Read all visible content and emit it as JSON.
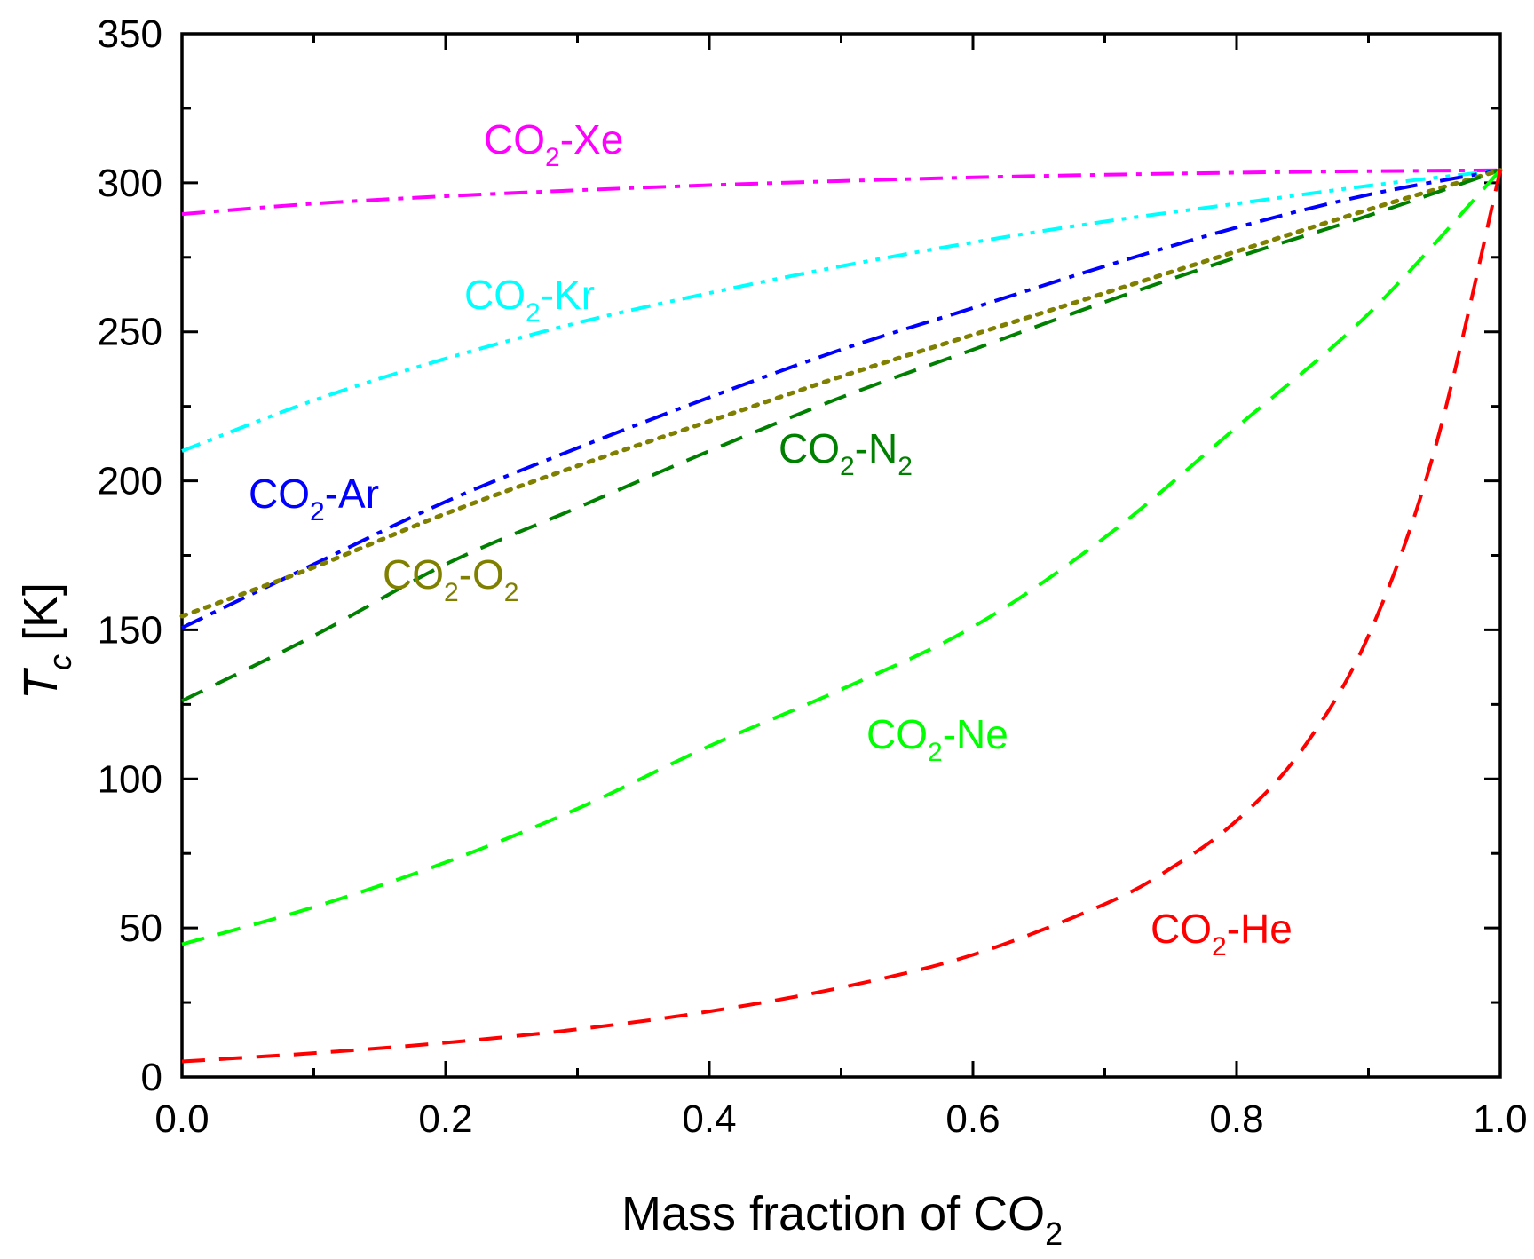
{
  "chart_data": {
    "type": "line",
    "title": "",
    "xlabel": {
      "main": "Mass fraction of CO",
      "sub": "2"
    },
    "ylabel": {
      "main": "T",
      "sub": "c",
      "unit": " [K]"
    },
    "xlim": [
      0.0,
      1.0
    ],
    "ylim": [
      0,
      350
    ],
    "x_ticks": [
      0.0,
      0.2,
      0.4,
      0.6,
      0.8,
      1.0
    ],
    "x_tick_labels": [
      "0.0",
      "0.2",
      "0.4",
      "0.6",
      "0.8",
      "1.0"
    ],
    "y_ticks": [
      0,
      50,
      100,
      150,
      200,
      250,
      300,
      350
    ],
    "y_tick_labels": [
      "0",
      "50",
      "100",
      "150",
      "200",
      "250",
      "300",
      "350"
    ],
    "grid": false,
    "series": [
      {
        "name": "CO2-Xe",
        "label": {
          "a": "CO",
          "b": "2",
          "c": "-Xe",
          "d": "",
          "e": ""
        },
        "color": "#ff00ff",
        "dash": "dash-dot",
        "x": [
          0.0,
          0.1,
          0.2,
          0.3,
          0.4,
          0.5,
          0.6,
          0.7,
          0.8,
          0.9,
          1.0
        ],
        "y": [
          289.5,
          293.0,
          295.5,
          297.5,
          299.2,
          300.6,
          301.8,
          302.7,
          303.4,
          303.9,
          304.2
        ]
      },
      {
        "name": "CO2-Kr",
        "label": {
          "a": "CO",
          "b": "2",
          "c": "-Kr",
          "d": "",
          "e": ""
        },
        "color": "#00ffff",
        "dash": "dash-dot-dot",
        "x": [
          0.0,
          0.1,
          0.2,
          0.3,
          0.4,
          0.5,
          0.6,
          0.7,
          0.8,
          0.9,
          1.0
        ],
        "y": [
          210.0,
          227.0,
          241.0,
          253.0,
          263.0,
          272.0,
          280.0,
          287.0,
          293.0,
          299.0,
          304.2
        ]
      },
      {
        "name": "CO2-Ar",
        "label": {
          "a": "CO",
          "b": "2",
          "c": "-Ar",
          "d": "",
          "e": ""
        },
        "color": "#0000ff",
        "dash": "dash-dot",
        "x": [
          0.0,
          0.1,
          0.2,
          0.3,
          0.4,
          0.5,
          0.6,
          0.7,
          0.8,
          0.9,
          1.0
        ],
        "y": [
          150.7,
          172.0,
          193.0,
          211.0,
          228.0,
          244.0,
          258.0,
          272.0,
          285.0,
          296.0,
          304.2
        ]
      },
      {
        "name": "CO2-O2",
        "label": {
          "a": "CO",
          "b": "2",
          "c": "-O",
          "d": "2",
          "e": ""
        },
        "color": "#808000",
        "dash": "dot",
        "x": [
          0.0,
          0.1,
          0.2,
          0.3,
          0.4,
          0.5,
          0.6,
          0.7,
          0.8,
          0.9,
          1.0
        ],
        "y": [
          154.6,
          171.0,
          189.0,
          205.0,
          220.0,
          235.0,
          249.0,
          263.0,
          277.0,
          291.0,
          304.2
        ]
      },
      {
        "name": "CO2-N2",
        "label": {
          "a": "CO",
          "b": "2",
          "c": "-N",
          "d": "2",
          "e": ""
        },
        "color": "#008000",
        "dash": "dash",
        "x": [
          0.0,
          0.1,
          0.2,
          0.3,
          0.4,
          0.5,
          0.6,
          0.7,
          0.8,
          0.9,
          1.0
        ],
        "y": [
          126.2,
          148.0,
          172.0,
          191.0,
          210.0,
          228.0,
          244.0,
          260.0,
          275.0,
          289.0,
          304.2
        ]
      },
      {
        "name": "CO2-Ne",
        "label": {
          "a": "CO",
          "b": "2",
          "c": "-Ne",
          "d": "",
          "e": ""
        },
        "color": "#00ff00",
        "dash": "dash",
        "x": [
          0.0,
          0.1,
          0.2,
          0.3,
          0.4,
          0.5,
          0.6,
          0.7,
          0.8,
          0.9,
          1.0
        ],
        "y": [
          44.5,
          57.0,
          72.0,
          90.0,
          111.0,
          130.0,
          151.0,
          181.0,
          218.0,
          256.0,
          304.2
        ]
      },
      {
        "name": "CO2-He",
        "label": {
          "a": "CO",
          "b": "2",
          "c": "-He",
          "d": "",
          "e": ""
        },
        "color": "#ff0000",
        "dash": "dash",
        "x": [
          0.0,
          0.1,
          0.2,
          0.3,
          0.4,
          0.5,
          0.6,
          0.7,
          0.75,
          0.8,
          0.85,
          0.9,
          0.95,
          1.0
        ],
        "y": [
          5.2,
          8.0,
          11.5,
          16.0,
          22.0,
          30.0,
          41.0,
          58.0,
          70.0,
          86.0,
          110.0,
          148.0,
          210.0,
          304.2
        ]
      }
    ]
  }
}
